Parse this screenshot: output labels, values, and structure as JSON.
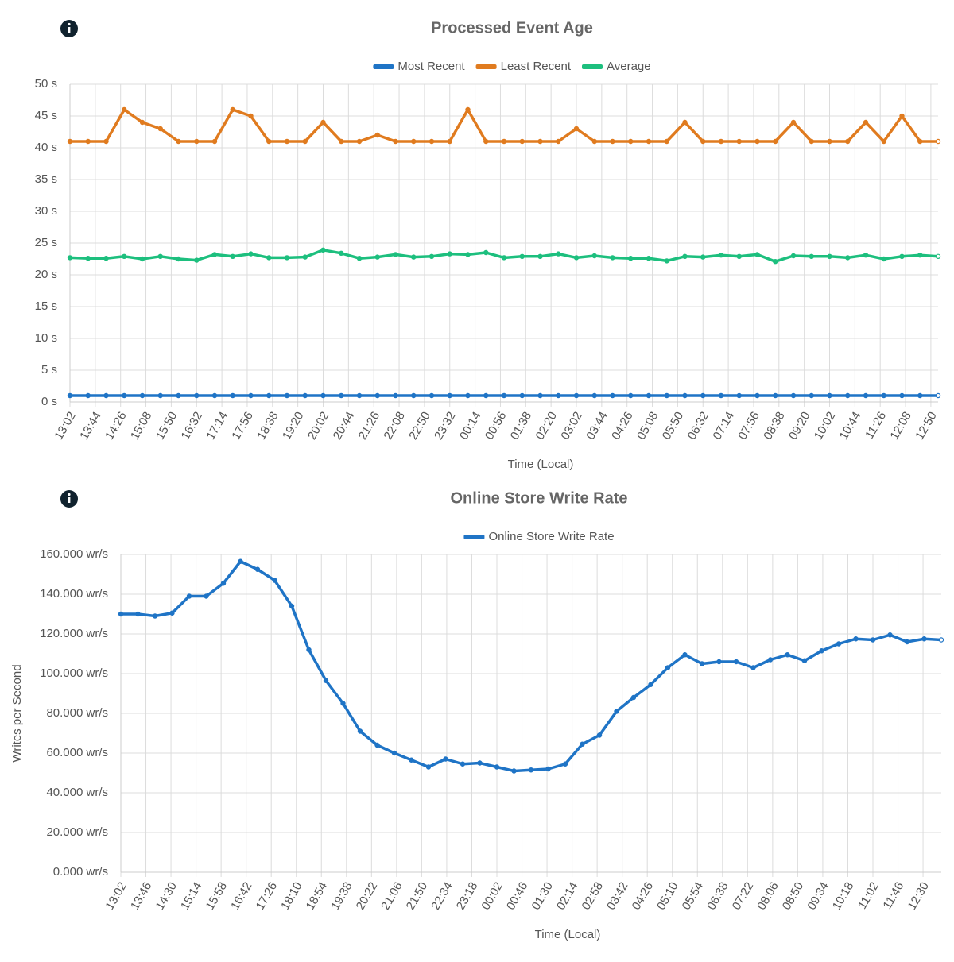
{
  "chart_data": [
    {
      "type": "line",
      "title": "Processed Event Age",
      "x_label": "Time (Local)",
      "x": [
        "13:02",
        "13:32",
        "14:02",
        "14:32",
        "15:02",
        "15:32",
        "16:02",
        "16:32",
        "17:02",
        "17:32",
        "18:02",
        "18:32",
        "19:02",
        "19:32",
        "20:02",
        "20:32",
        "21:02",
        "21:32",
        "22:02",
        "22:32",
        "23:02",
        "23:32",
        "00:02",
        "00:32",
        "01:02",
        "01:32",
        "02:02",
        "02:32",
        "03:02",
        "03:32",
        "04:02",
        "04:32",
        "05:02",
        "05:32",
        "06:02",
        "06:32",
        "07:02",
        "07:32",
        "08:02",
        "08:32",
        "09:02",
        "09:32",
        "10:02",
        "10:32",
        "11:02",
        "11:32",
        "12:02",
        "12:32",
        "13:02"
      ],
      "xticks": [
        "13:02",
        "13:44",
        "14:26",
        "15:08",
        "15:50",
        "16:32",
        "17:14",
        "17:56",
        "18:38",
        "19:20",
        "20:02",
        "20:44",
        "21:26",
        "22:08",
        "22:50",
        "23:32",
        "00:14",
        "00:56",
        "01:38",
        "02:20",
        "03:02",
        "03:44",
        "04:26",
        "05:08",
        "05:50",
        "06:32",
        "07:14",
        "07:56",
        "08:38",
        "09:20",
        "10:02",
        "10:44",
        "11:26",
        "12:08",
        "12:50"
      ],
      "ylim": [
        0,
        50
      ],
      "yticks": [
        {
          "value": 0,
          "label": "0 s"
        },
        {
          "value": 5,
          "label": "5 s"
        },
        {
          "value": 10,
          "label": "10 s"
        },
        {
          "value": 15,
          "label": "15 s"
        },
        {
          "value": 20,
          "label": "20 s"
        },
        {
          "value": 25,
          "label": "25 s"
        },
        {
          "value": 30,
          "label": "30 s"
        },
        {
          "value": 35,
          "label": "35 s"
        },
        {
          "value": 40,
          "label": "40 s"
        },
        {
          "value": 45,
          "label": "45 s"
        },
        {
          "value": 50,
          "label": "50 s"
        }
      ],
      "grid": true,
      "legend": "top",
      "series": [
        {
          "name": "Most Recent",
          "color": "#1f74c6",
          "values": [
            1,
            1,
            1,
            1,
            1,
            1,
            1,
            1,
            1,
            1,
            1,
            1,
            1,
            1,
            1,
            1,
            1,
            1,
            1,
            1,
            1,
            1,
            1,
            1,
            1,
            1,
            1,
            1,
            1,
            1,
            1,
            1,
            1,
            1,
            1,
            1,
            1,
            1,
            1,
            1,
            1,
            1,
            1,
            1,
            1,
            1,
            1,
            1,
            1
          ]
        },
        {
          "name": "Least Recent",
          "color": "#e07b1f",
          "values": [
            41,
            41,
            41,
            46,
            44,
            43,
            41,
            41,
            41,
            46,
            45,
            41,
            41,
            41,
            44,
            41,
            41,
            42,
            41,
            41,
            41,
            41,
            46,
            41,
            41,
            41,
            41,
            41,
            43,
            41,
            41,
            41,
            41,
            41,
            44,
            41,
            41,
            41,
            41,
            41,
            44,
            41,
            41,
            41,
            44,
            41,
            45,
            41,
            41
          ]
        },
        {
          "name": "Average",
          "color": "#1dbf7e",
          "values": [
            22.7,
            22.6,
            22.6,
            22.9,
            22.5,
            22.9,
            22.5,
            22.3,
            23.2,
            22.9,
            23.3,
            22.7,
            22.7,
            22.8,
            23.9,
            23.4,
            22.6,
            22.8,
            23.2,
            22.8,
            22.9,
            23.3,
            23.2,
            23.5,
            22.7,
            22.9,
            22.9,
            23.3,
            22.7,
            23.0,
            22.7,
            22.6,
            22.6,
            22.2,
            22.9,
            22.8,
            23.1,
            22.9,
            23.2,
            22.1,
            23.0,
            22.9,
            22.9,
            22.7,
            23.1,
            22.5,
            22.9,
            23.1,
            22.9
          ]
        }
      ]
    },
    {
      "type": "line",
      "title": "Online Store Write Rate",
      "x_label": "Time (Local)",
      "y_label": "Writes per Second",
      "x": [
        "13:02",
        "13:32",
        "14:02",
        "14:32",
        "15:02",
        "15:32",
        "16:02",
        "16:32",
        "17:02",
        "17:32",
        "18:02",
        "18:32",
        "19:02",
        "19:32",
        "20:02",
        "20:32",
        "21:02",
        "21:32",
        "22:02",
        "22:32",
        "23:02",
        "23:32",
        "00:02",
        "00:32",
        "01:02",
        "01:32",
        "02:02",
        "02:32",
        "03:02",
        "03:32",
        "04:02",
        "04:32",
        "05:02",
        "05:32",
        "06:02",
        "06:32",
        "07:02",
        "07:32",
        "08:02",
        "08:32",
        "09:02",
        "09:32",
        "10:02",
        "10:32",
        "11:02",
        "11:32",
        "12:02",
        "12:32",
        "13:02"
      ],
      "xticks": [
        "13:02",
        "13:46",
        "14:30",
        "15:14",
        "15:58",
        "16:42",
        "17:26",
        "18:10",
        "18:54",
        "19:38",
        "20:22",
        "21:06",
        "21:50",
        "22:34",
        "23:18",
        "00:02",
        "00:46",
        "01:30",
        "02:14",
        "02:58",
        "03:42",
        "04:26",
        "05:10",
        "05:54",
        "06:38",
        "07:22",
        "08:06",
        "08:50",
        "09:34",
        "10:18",
        "11:02",
        "11:46",
        "12:30"
      ],
      "ylim": [
        0,
        160
      ],
      "yticks": [
        {
          "value": 0,
          "label": "0.000 wr/s"
        },
        {
          "value": 20,
          "label": "20.000 wr/s"
        },
        {
          "value": 40,
          "label": "40.000 wr/s"
        },
        {
          "value": 60,
          "label": "60.000 wr/s"
        },
        {
          "value": 80,
          "label": "80.000 wr/s"
        },
        {
          "value": 100,
          "label": "100.000 wr/s"
        },
        {
          "value": 120,
          "label": "120.000 wr/s"
        },
        {
          "value": 140,
          "label": "140.000 wr/s"
        },
        {
          "value": 160,
          "label": "160.000 wr/s"
        }
      ],
      "grid": true,
      "legend": "top",
      "series": [
        {
          "name": "Online Store Write Rate",
          "color": "#1f74c6",
          "values": [
            130,
            130,
            129,
            130.5,
            139,
            139,
            145.5,
            156.5,
            152.5,
            147,
            134,
            112,
            96.5,
            85,
            71,
            64,
            60,
            56.5,
            53,
            57,
            54.5,
            55,
            53,
            51,
            51.5,
            52,
            54.5,
            64.5,
            69,
            81,
            88,
            94.5,
            103,
            109.5,
            105,
            106,
            106,
            103,
            107,
            109.5,
            106.5,
            111.5,
            115,
            117.5,
            117,
            119.5,
            116,
            117.5,
            117
          ]
        }
      ]
    }
  ]
}
